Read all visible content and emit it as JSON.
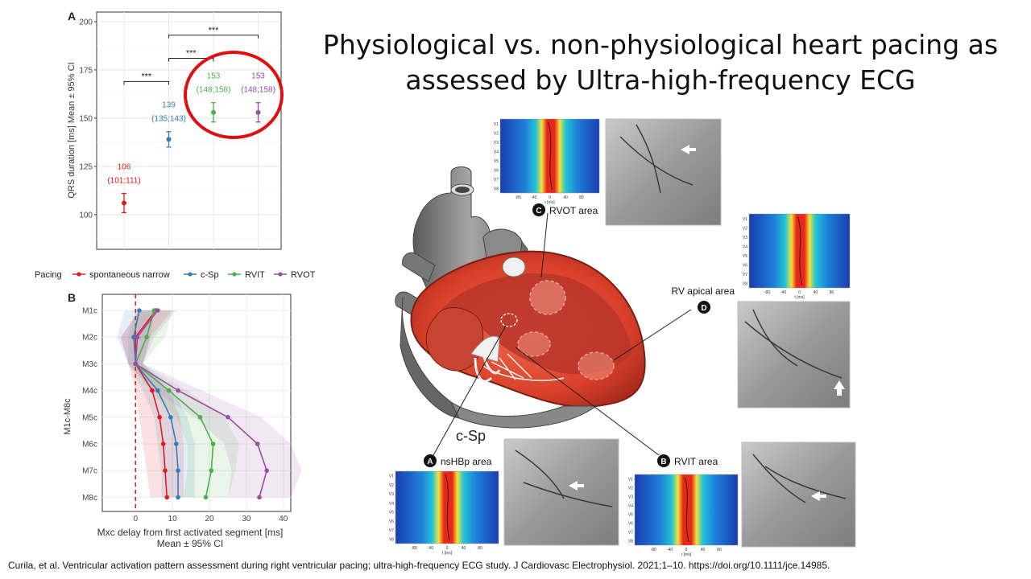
{
  "slide": {
    "title_line1": "Physiological vs. non-physiological heart pacing as",
    "title_line2": "assessed by Ultra-high-frequency ECG",
    "citation": "Curila, et al. Ventricular activation pattern assessment during right ventricular pacing; ultra-high-frequency ECG study. J Cardiovasc Electrophysiol. 2021;1–10. https://doi.org/10.1111/jce.14985."
  },
  "colors": {
    "spontaneous": "#e31a1c",
    "csp": "#377eb8",
    "rvit": "#4daf4a",
    "rvot": "#984ea3",
    "highlight": "#e01010"
  },
  "chart_data": [
    {
      "type": "scatter",
      "panel": "A",
      "title": "",
      "xlabel": "",
      "ylabel": "QRS duration [ms] Mean ± 95% CI",
      "ylim": [
        82,
        205
      ],
      "yticks": [
        100,
        125,
        150,
        175,
        200
      ],
      "grid": true,
      "series": [
        {
          "key": "spontaneous",
          "mean": 106,
          "ci": [
            101,
            111
          ],
          "label_mean": "106",
          "label_ci": "(101;111)"
        },
        {
          "key": "csp",
          "mean": 139,
          "ci": [
            135,
            143
          ],
          "label_mean": "139",
          "label_ci": "(135;143)"
        },
        {
          "key": "rvit",
          "mean": 153,
          "ci": [
            148,
            158
          ],
          "label_mean": "153",
          "label_ci": "(148;158)"
        },
        {
          "key": "rvot",
          "mean": 153,
          "ci": [
            148,
            158
          ],
          "label_mean": "153",
          "label_ci": "(148;158)"
        }
      ],
      "significance": [
        {
          "from": 0,
          "to": 1,
          "y": 169,
          "label": "***"
        },
        {
          "from": 1,
          "to": 2,
          "y": 181,
          "label": "***"
        },
        {
          "from": 1,
          "to": 3,
          "y": 193,
          "label": "***"
        }
      ]
    },
    {
      "type": "line",
      "panel": "B",
      "xlabel": "Mxc delay from first activated segment [ms]",
      "xlabel2": "Mean ± 95% CI",
      "ylabel": "M1c-M8c",
      "categories": [
        "M1c",
        "M2c",
        "M3c",
        "M4c",
        "M5c",
        "M6c",
        "M7c",
        "M8c"
      ],
      "xlim": [
        -9,
        42
      ],
      "xticks": [
        0,
        10,
        20,
        30,
        40
      ],
      "reference_line_x": 0,
      "grid": true,
      "series": [
        {
          "key": "spontaneous",
          "values": [
            5.5,
            0,
            0,
            4.5,
            6.5,
            7.5,
            8,
            8.5
          ],
          "ci_low": [
            1,
            -4,
            -2,
            0,
            1,
            2,
            3,
            4
          ],
          "ci_high": [
            10,
            4,
            2,
            9,
            12,
            13,
            13,
            13
          ]
        },
        {
          "key": "csp",
          "values": [
            1,
            -0.5,
            0,
            6,
            9.5,
            11,
            11.5,
            11.5
          ],
          "ci_low": [
            -3,
            -5,
            -2,
            2,
            5,
            6,
            7,
            7
          ],
          "ci_high": [
            5,
            4,
            2,
            10,
            14,
            16,
            16,
            16
          ]
        },
        {
          "key": "rvit",
          "values": [
            5,
            3,
            0,
            9,
            17.5,
            21,
            20.5,
            19
          ],
          "ci_low": [
            0,
            -2,
            -2,
            4,
            11,
            14,
            14,
            13
          ],
          "ci_high": [
            10,
            8,
            2,
            14,
            24,
            28,
            27,
            25
          ]
        },
        {
          "key": "rvot",
          "values": [
            6,
            0.5,
            0,
            11.5,
            25,
            33,
            35.5,
            33.5
          ],
          "ci_low": [
            1,
            -4,
            -2,
            5,
            16,
            24,
            26,
            25
          ],
          "ci_high": [
            11,
            5,
            2,
            18,
            34,
            42,
            45,
            42
          ]
        }
      ]
    }
  ],
  "legend": {
    "title": "Pacing",
    "items": [
      {
        "key": "spontaneous",
        "label": "spontaneous narrow"
      },
      {
        "key": "csp",
        "label": "c-Sp"
      },
      {
        "key": "rvit",
        "label": "RVIT"
      },
      {
        "key": "rvot",
        "label": "RVOT"
      }
    ]
  },
  "diagram": {
    "csp_label": "c-Sp",
    "callouts": [
      {
        "letter": "A",
        "text": "nsHBp area"
      },
      {
        "letter": "B",
        "text": "RVIT area"
      },
      {
        "letter": "C",
        "text": "RVOT area"
      },
      {
        "letter": "D",
        "text": "RV apical area"
      }
    ],
    "heatmap_leads": [
      "V1",
      "V2",
      "V3",
      "V4",
      "V5",
      "V6",
      "V7",
      "V8"
    ],
    "heatmap_xticks": [
      "-80",
      "-40",
      "0",
      "40",
      "80"
    ],
    "heatmap_xunit": "t [ms]"
  }
}
